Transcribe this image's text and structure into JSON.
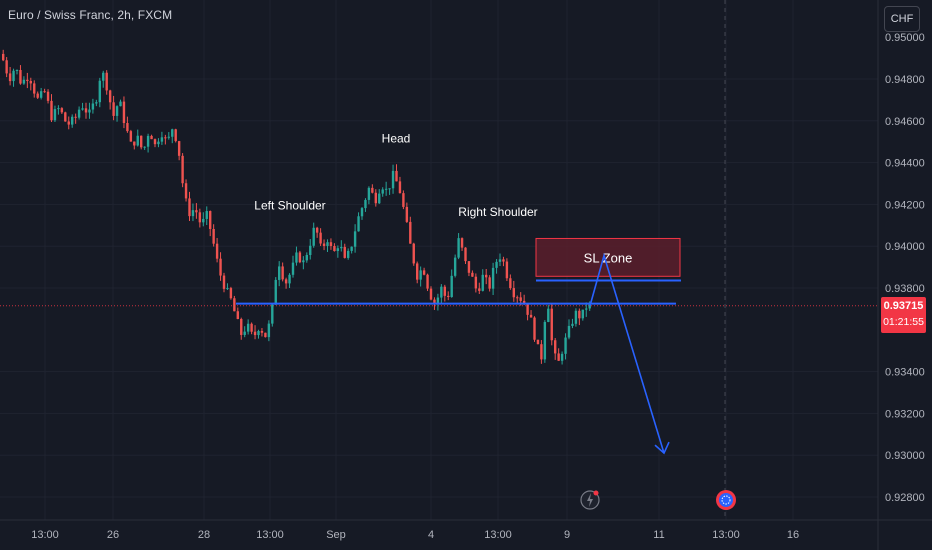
{
  "header": {
    "title": "Euro / Swiss Franc, 2h, FXCM",
    "currency_button": "CHF"
  },
  "price_badge": {
    "price": "0.93715",
    "countdown": "01:21:55"
  },
  "colors": {
    "background": "#161a25",
    "up": "#26a69a",
    "down": "#ef5350",
    "neckline": "#2962ff",
    "sl_zone_fill": "#5a1f2b",
    "sl_zone_border": "#f23645",
    "last_price_line": "#f23645",
    "grid": "#1f2330"
  },
  "icons": [
    "lightning-icon",
    "economic-event-icon"
  ],
  "chart_data": {
    "type": "candlestick",
    "symbol": "EURCHF",
    "timeframe": "2h",
    "y_ticks": [
      0.948,
      0.946,
      0.944,
      0.942,
      0.94,
      0.938,
      0.9372,
      0.934,
      0.932,
      0.93,
      0.928
    ],
    "y_tick_labels": [
      "0.94800",
      "0.94600",
      "0.94400",
      "0.94200",
      "0.94000",
      "0.93800",
      "0.93715",
      "0.93400",
      "0.93200",
      "0.93000",
      "0.92800"
    ],
    "ylim": [
      0.9265,
      0.9503
    ],
    "x_ticks": [
      {
        "label": "13:00",
        "x": 45
      },
      {
        "label": "26",
        "x": 113
      },
      {
        "label": "28",
        "x": 204
      },
      {
        "label": "13:00",
        "x": 270
      },
      {
        "label": "Sep",
        "x": 336
      },
      {
        "label": "4",
        "x": 431
      },
      {
        "label": "13:00",
        "x": 498
      },
      {
        "label": "9",
        "x": 567
      },
      {
        "label": "11",
        "x": 659
      },
      {
        "label": "13:00",
        "x": 726
      },
      {
        "label": "16",
        "x": 793
      }
    ],
    "last_price": 0.93715,
    "ohlc_path": [
      [
        0,
        0.9492
      ],
      [
        8,
        0.948
      ],
      [
        14,
        0.9486
      ],
      [
        20,
        0.9478
      ],
      [
        28,
        0.9482
      ],
      [
        36,
        0.947
      ],
      [
        44,
        0.9474
      ],
      [
        50,
        0.9462
      ],
      [
        58,
        0.9466
      ],
      [
        66,
        0.9458
      ],
      [
        74,
        0.9461
      ],
      [
        80,
        0.9468
      ],
      [
        88,
        0.9463
      ],
      [
        96,
        0.9472
      ],
      [
        100,
        0.9485
      ],
      [
        106,
        0.9476
      ],
      [
        112,
        0.9462
      ],
      [
        118,
        0.947
      ],
      [
        124,
        0.9458
      ],
      [
        130,
        0.9448
      ],
      [
        136,
        0.9452
      ],
      [
        142,
        0.9445
      ],
      [
        148,
        0.9456
      ],
      [
        154,
        0.9448
      ],
      [
        160,
        0.9455
      ],
      [
        166,
        0.9449
      ],
      [
        172,
        0.9458
      ],
      [
        178,
        0.9444
      ],
      [
        183,
        0.9424
      ],
      [
        188,
        0.9416
      ],
      [
        194,
        0.9418
      ],
      [
        200,
        0.941
      ],
      [
        206,
        0.9415
      ],
      [
        212,
        0.9402
      ],
      [
        218,
        0.9388
      ],
      [
        224,
        0.938
      ],
      [
        230,
        0.9374
      ],
      [
        236,
        0.9364
      ],
      [
        240,
        0.9358
      ],
      [
        246,
        0.9362
      ],
      [
        252,
        0.9356
      ],
      [
        258,
        0.9362
      ],
      [
        264,
        0.9357
      ],
      [
        270,
        0.9365
      ],
      [
        274,
        0.9384
      ],
      [
        278,
        0.9392
      ],
      [
        284,
        0.9382
      ],
      [
        290,
        0.9388
      ],
      [
        296,
        0.9396
      ],
      [
        302,
        0.9392
      ],
      [
        308,
        0.94
      ],
      [
        314,
        0.941
      ],
      [
        320,
        0.9398
      ],
      [
        326,
        0.9404
      ],
      [
        332,
        0.9396
      ],
      [
        338,
        0.9402
      ],
      [
        344,
        0.9392
      ],
      [
        350,
        0.94
      ],
      [
        356,
        0.9412
      ],
      [
        362,
        0.942
      ],
      [
        368,
        0.9428
      ],
      [
        374,
        0.9422
      ],
      [
        380,
        0.943
      ],
      [
        386,
        0.9426
      ],
      [
        392,
        0.9434
      ],
      [
        398,
        0.9428
      ],
      [
        404,
        0.9414
      ],
      [
        410,
        0.9398
      ],
      [
        416,
        0.9386
      ],
      [
        422,
        0.939
      ],
      [
        428,
        0.9378
      ],
      [
        434,
        0.9372
      ],
      [
        440,
        0.938
      ],
      [
        446,
        0.9374
      ],
      [
        452,
        0.939
      ],
      [
        458,
        0.9404
      ],
      [
        464,
        0.9392
      ],
      [
        470,
        0.9386
      ],
      [
        476,
        0.9378
      ],
      [
        482,
        0.9386
      ],
      [
        488,
        0.938
      ],
      [
        494,
        0.9392
      ],
      [
        500,
        0.9396
      ],
      [
        506,
        0.9386
      ],
      [
        512,
        0.9378
      ],
      [
        518,
        0.9376
      ],
      [
        524,
        0.9372
      ],
      [
        530,
        0.9364
      ],
      [
        536,
        0.9352
      ],
      [
        540,
        0.9346
      ],
      [
        546,
        0.9378
      ],
      [
        550,
        0.9356
      ],
      [
        556,
        0.9342
      ],
      [
        562,
        0.9352
      ],
      [
        568,
        0.936
      ],
      [
        574,
        0.9368
      ],
      [
        580,
        0.9366
      ],
      [
        586,
        0.9372
      ],
      [
        590,
        0.93715
      ]
    ],
    "neckline": {
      "x1": 236,
      "x2": 676,
      "value": 0.93725
    },
    "sl_line": {
      "x1": 536,
      "x2": 681,
      "value": 0.93836
    },
    "sl_zone": {
      "x1": 536,
      "x2": 680,
      "top": 0.94037,
      "bottom": 0.93856,
      "label": "SL Zone"
    },
    "projection": [
      [
        590,
        0.93715
      ],
      [
        604,
        0.93955
      ],
      [
        664,
        0.9301
      ]
    ],
    "annotations": [
      {
        "label": "Left Shoulder",
        "x": 290,
        "value": 0.94175
      },
      {
        "label": "Head",
        "x": 396,
        "value": 0.94495
      },
      {
        "label": "Right Shoulder",
        "x": 498,
        "value": 0.94145
      }
    ],
    "vertical_marker_x": 725,
    "event_markers": [
      {
        "x": 590,
        "icon": "lightning-icon"
      },
      {
        "x": 726,
        "icon": "economic-event-icon"
      }
    ]
  }
}
